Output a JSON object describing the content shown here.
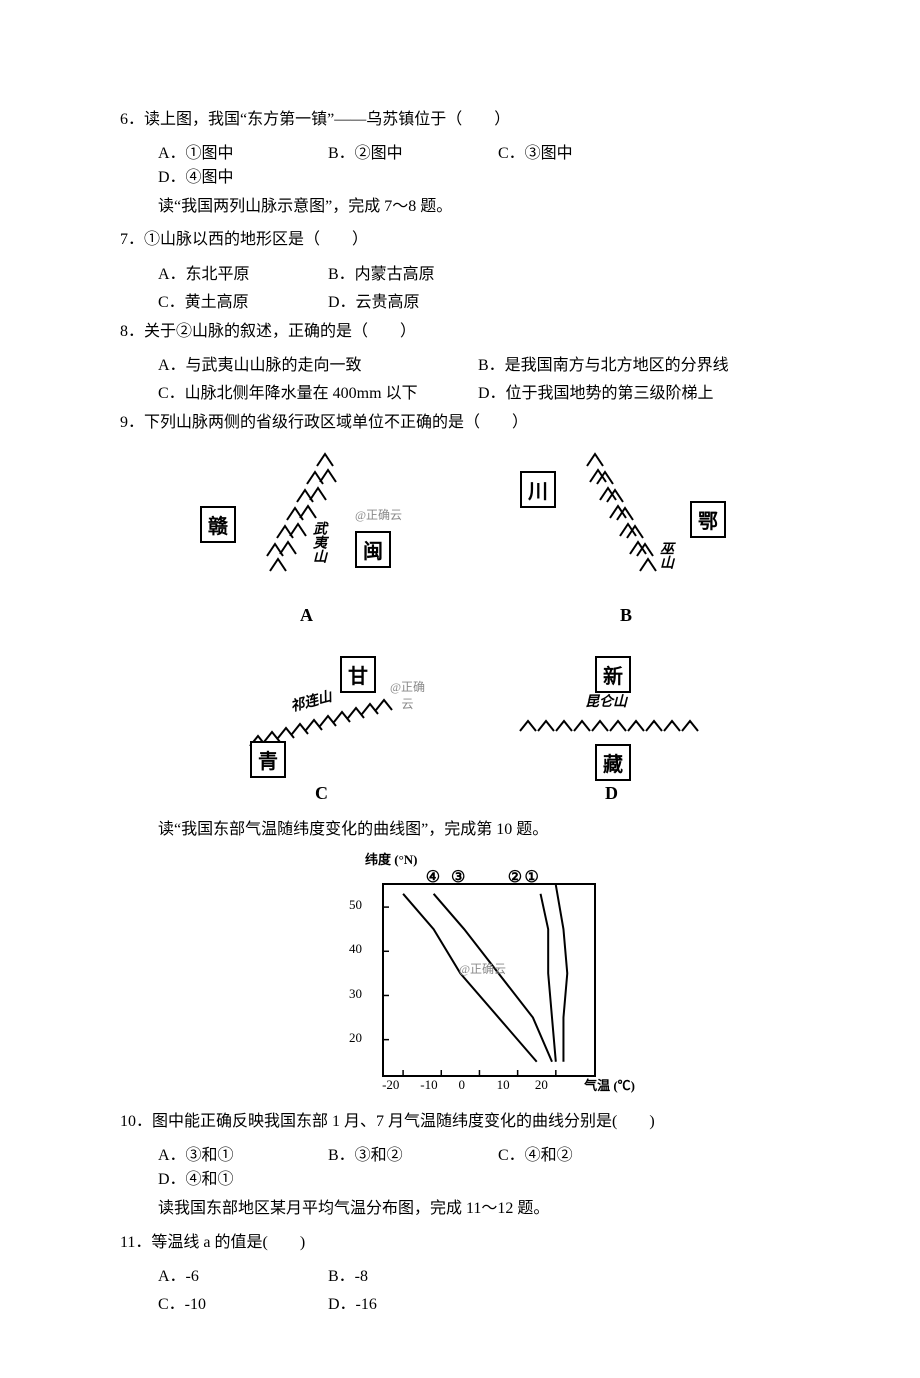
{
  "q6": {
    "stem": "6．读上图，我国“东方第一镇”——乌苏镇位于（　　）",
    "opts": {
      "A": "A．①图中",
      "B": "B．②图中",
      "C": "C．③图中",
      "D": "D．④图中"
    },
    "lead": "读“我国两列山脉示意图”，完成 7～8 题。"
  },
  "q7": {
    "stem": "7．①山脉以西的地形区是（　　）",
    "opts": {
      "A": "A．东北平原",
      "B": "B．内蒙古高原",
      "C": "C．黄土高原",
      "D": "D．云贵高原"
    }
  },
  "q8": {
    "stem": "8．关于②山脉的叙述，正确的是（　　）",
    "opts": {
      "A": "A．与武夷山山脉的走向一致",
      "B": "B．是我国南方与北方地区的分界线",
      "C": "C．山脉北侧年降水量在 400mm 以下",
      "D": "D．位于我国地势的第三级阶梯上"
    }
  },
  "q9": {
    "stem": "9．下列山脉两侧的省级行政区域单位不正确的是（　　）",
    "panels": {
      "A": {
        "left": "赣",
        "mountain": "武夷山",
        "right": "闽",
        "caption": "A",
        "wm": "@正确云"
      },
      "B": {
        "left": "川",
        "mountain": "巫山",
        "right": "鄂",
        "caption": "B"
      },
      "C": {
        "top": "甘",
        "mountain": "祁连山",
        "bottom": "青",
        "caption": "C",
        "wm": "@正确云"
      },
      "D": {
        "top": "新",
        "mountain": "昆仑山",
        "bottom": "藏",
        "caption": "D"
      }
    },
    "lead": "读“我国东部气温随纬度变化的曲线图”，完成第 10 题。"
  },
  "chart10": {
    "type": "line",
    "y_axis_label": "纬度 (°N)",
    "x_axis_label": "气温 (℃)",
    "y_ticks": [
      20,
      30,
      40,
      50
    ],
    "x_ticks": [
      -20,
      -10,
      0,
      10,
      20
    ],
    "series_labels": [
      "④",
      "③",
      "②",
      "①"
    ],
    "series_label_positions_x": [
      0.28,
      0.4,
      0.67,
      0.75
    ],
    "xlim": [
      -25,
      30
    ],
    "ylim": [
      12,
      55
    ],
    "line_color": "#000000",
    "bg_color": "#ffffff",
    "border_color": "#000000",
    "wm": "@正确云",
    "series": {
      "1": [
        [
          22,
          15
        ],
        [
          22,
          25
        ],
        [
          23,
          35
        ],
        [
          22,
          45
        ],
        [
          20,
          55
        ]
      ],
      "2": [
        [
          20,
          15
        ],
        [
          19,
          25
        ],
        [
          18,
          35
        ],
        [
          18,
          45
        ],
        [
          16,
          53
        ]
      ],
      "3": [
        [
          19,
          15
        ],
        [
          14,
          25
        ],
        [
          5,
          35
        ],
        [
          -4,
          45
        ],
        [
          -12,
          53
        ]
      ],
      "4": [
        [
          15,
          15
        ],
        [
          5,
          25
        ],
        [
          -5,
          35
        ],
        [
          -12,
          45
        ],
        [
          -20,
          53
        ]
      ]
    }
  },
  "q10": {
    "stem": "10．图中能正确反映我国东部 1 月、7 月气温随纬度变化的曲线分别是(　　)",
    "opts": {
      "A": "A．③和①",
      "B": "B．③和②",
      "C": "C．④和②",
      "D": "D．④和①"
    },
    "lead": "读我国东部地区某月平均气温分布图，完成 11～12 题。"
  },
  "q11": {
    "stem": "11．等温线 a 的值是(　　)",
    "opts": {
      "A": "A．-6",
      "B": "B．-8",
      "C": "C．-10",
      "D": "D．-16"
    }
  }
}
